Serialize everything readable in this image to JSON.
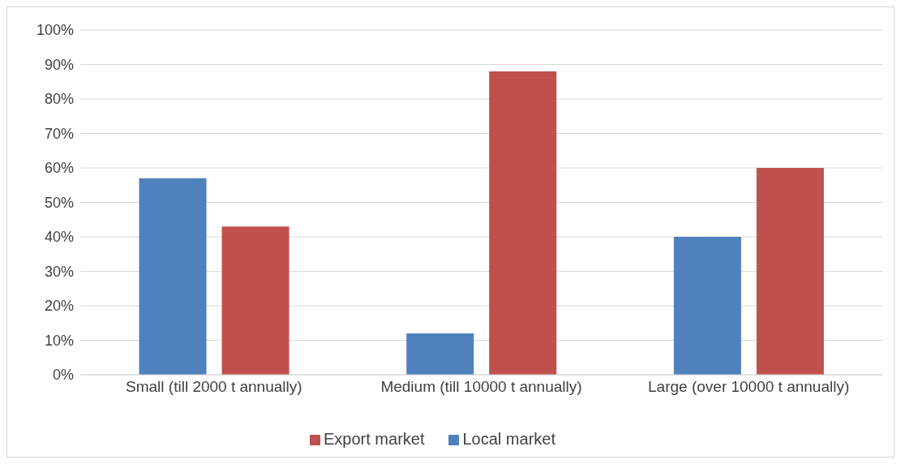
{
  "chart_data": {
    "type": "bar",
    "categories": [
      "Small (till 2000 t annually)",
      "Medium (till 10000 t annually)",
      "Large  (over 10000 t annually)"
    ],
    "series": [
      {
        "name": "Local market",
        "color": "#4f81bd",
        "values": [
          57,
          12,
          40
        ]
      },
      {
        "name": "Export market",
        "color": "#c0504d",
        "values": [
          43,
          88,
          60
        ]
      }
    ],
    "ylim": [
      0,
      100
    ],
    "yticks": [
      {
        "value": 0,
        "label": "0%"
      },
      {
        "value": 10,
        "label": "10%"
      },
      {
        "value": 20,
        "label": "20%"
      },
      {
        "value": 30,
        "label": "30%"
      },
      {
        "value": 40,
        "label": "40%"
      },
      {
        "value": 50,
        "label": "50%"
      },
      {
        "value": 60,
        "label": "60%"
      },
      {
        "value": 70,
        "label": "70%"
      },
      {
        "value": 80,
        "label": "80%"
      },
      {
        "value": 90,
        "label": "90%"
      },
      {
        "value": 100,
        "label": "100%"
      }
    ],
    "grid": "y",
    "legend": "bottom"
  }
}
